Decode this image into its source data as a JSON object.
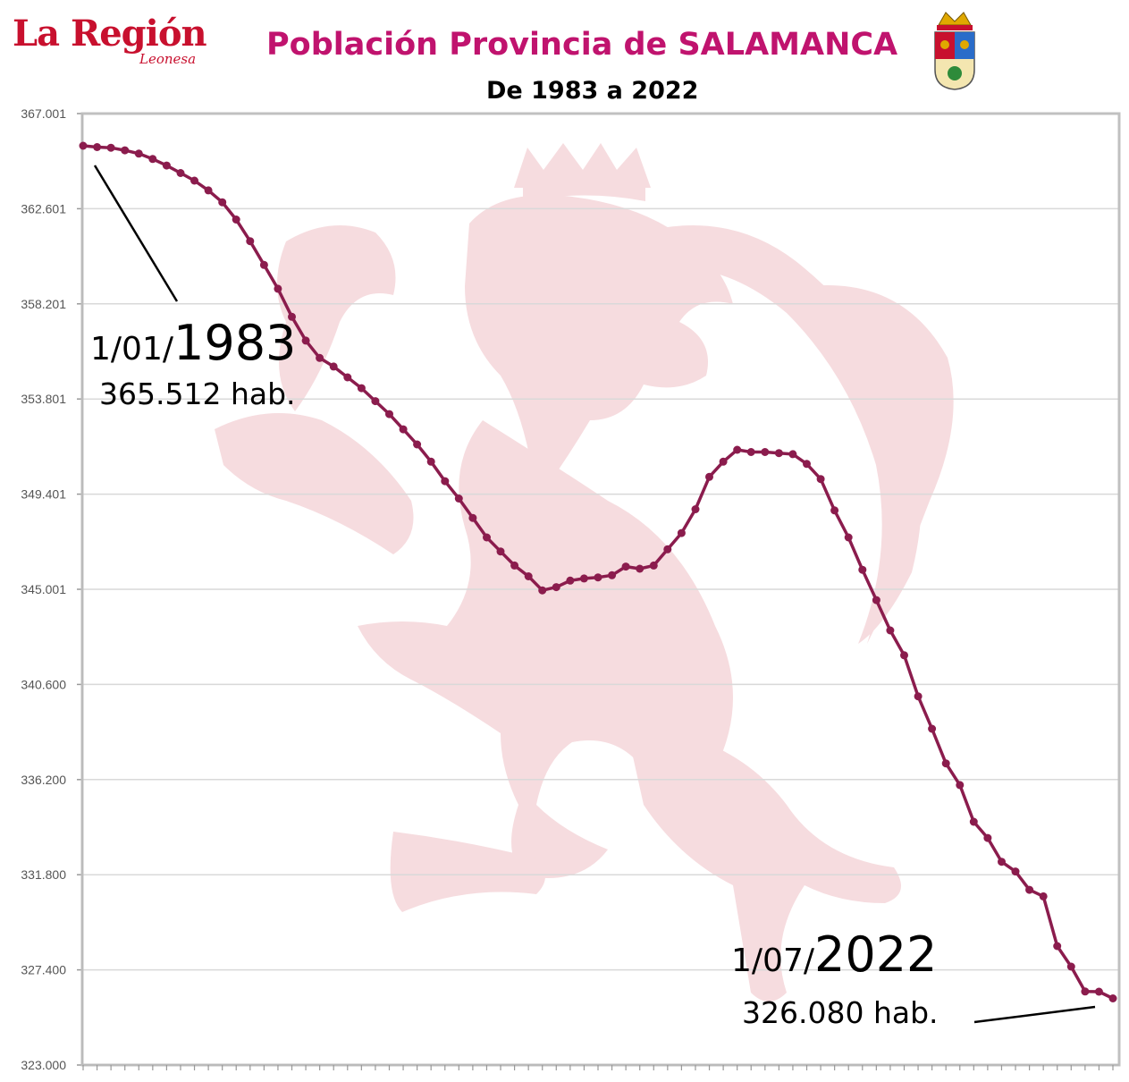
{
  "header": {
    "logo_main": "La Región",
    "logo_sub": "Leonesa",
    "title": "Población Provincia de SALAMANCA",
    "subtitle": "De 1983 a 2022"
  },
  "annotations": {
    "start_date_prefix": "1/01/",
    "start_year": "1983",
    "start_value": "365.512 hab.",
    "end_date_prefix": "1/07/",
    "end_year": "2022",
    "end_value": "326.080 hab."
  },
  "colors": {
    "line": "#8b1c4d",
    "watermark": "#f6dcdf",
    "title": "#c0136e",
    "logo": "#c8102e"
  },
  "chart_data": {
    "type": "line",
    "title": "Población Provincia de SALAMANCA",
    "subtitle": "De 1983 a 2022",
    "ylim": [
      323000,
      367001
    ],
    "y_ticks": [
      "367.001",
      "362.601",
      "358.201",
      "353.801",
      "349.401",
      "345.001",
      "340.600",
      "336.200",
      "331.800",
      "327.400",
      "323.000"
    ],
    "y_tick_values": [
      367001,
      362601,
      358201,
      353801,
      349401,
      345001,
      340600,
      336200,
      331800,
      327400,
      323000
    ],
    "grid": true,
    "series": [
      {
        "values": [
          365512,
          365450,
          365420,
          365300,
          365150,
          364900,
          364600,
          364250,
          363900,
          363450,
          362900,
          362100,
          361100,
          360000,
          358900,
          357600,
          356500,
          355700,
          355300,
          354800,
          354300,
          353700,
          353100,
          352400,
          351700,
          350900,
          350000,
          349200,
          348300,
          347400,
          346750,
          346100,
          345600,
          344950,
          345100,
          345400,
          345500,
          345550,
          345650,
          346050,
          345950,
          346100,
          346850,
          347600,
          348700,
          350200,
          350900,
          351450,
          351350,
          351350,
          351300,
          351250,
          350800,
          350100,
          348650,
          347400,
          345900,
          344500,
          343100,
          341950,
          340050,
          338550,
          336950,
          335950,
          334250,
          333500,
          332400,
          331950,
          331100,
          330800,
          328500,
          327550,
          326400,
          326390,
          326080
        ]
      }
    ]
  }
}
